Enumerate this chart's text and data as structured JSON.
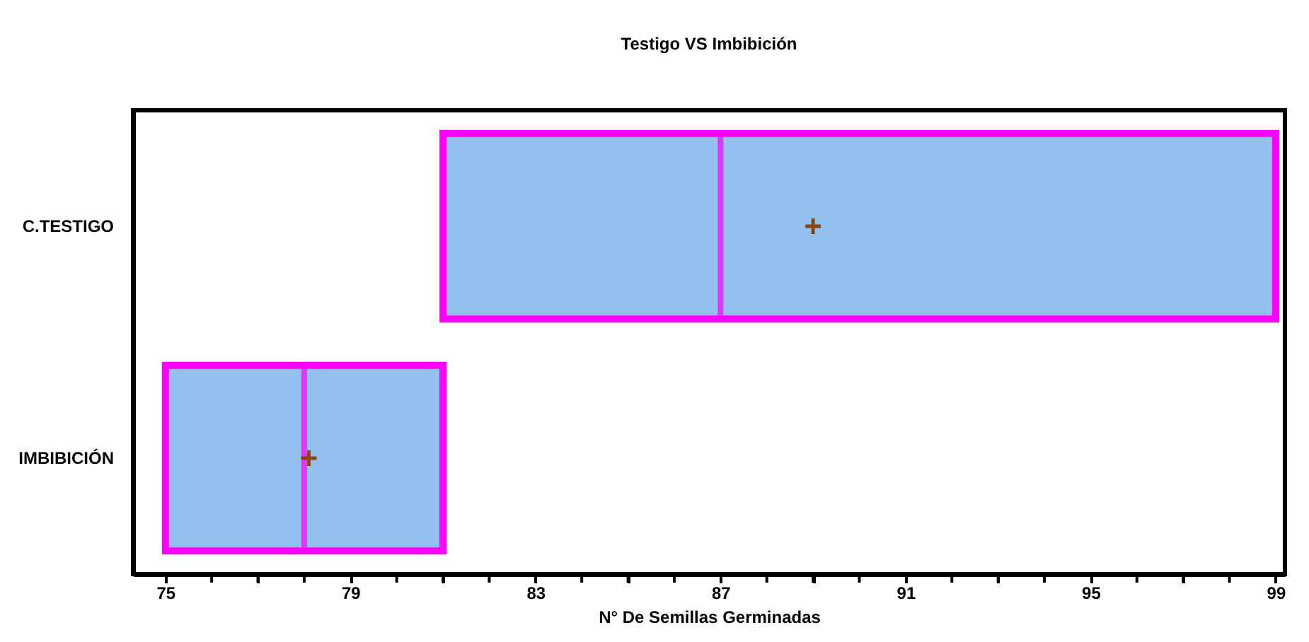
{
  "chart_data": {
    "type": "box",
    "title": "Testigo VS Imbibición",
    "xlabel": "N° De Semillas Germinadas",
    "orientation": "horizontal",
    "categories": [
      "C.TESTIGO",
      "IMBIBICIÓN"
    ],
    "series": [
      {
        "color": "#92c0ef",
        "boxes": [
          {
            "low": 81,
            "q1": 81,
            "median": 87,
            "q3": 99,
            "high": 99,
            "mean": 89
          },
          {
            "low": 75,
            "q1": 75,
            "median": 78,
            "q3": 81,
            "high": 81,
            "mean": 78.1
          }
        ]
      }
    ],
    "xlim": [
      74.3,
      99.2
    ],
    "xticks": [
      75,
      {
        "value": 76,
        "label": null
      },
      {
        "value": 77,
        "label": null
      },
      {
        "value": 78,
        "label": null
      },
      79,
      {
        "value": 80,
        "label": null
      },
      {
        "value": 81,
        "label": null
      },
      {
        "value": 82,
        "label": null
      },
      83,
      {
        "value": 84,
        "label": null
      },
      {
        "value": 85,
        "label": null
      },
      {
        "value": 86,
        "label": null
      },
      87,
      {
        "value": 88,
        "label": null
      },
      {
        "value": 89,
        "label": null
      },
      {
        "value": 90,
        "label": null
      },
      91,
      {
        "value": 92,
        "label": null
      },
      {
        "value": 93,
        "label": null
      },
      {
        "value": 94,
        "label": null
      },
      95,
      {
        "value": 96,
        "label": null
      },
      {
        "value": 97,
        "label": null
      },
      {
        "value": 98,
        "label": null
      },
      99
    ],
    "grid": false
  }
}
